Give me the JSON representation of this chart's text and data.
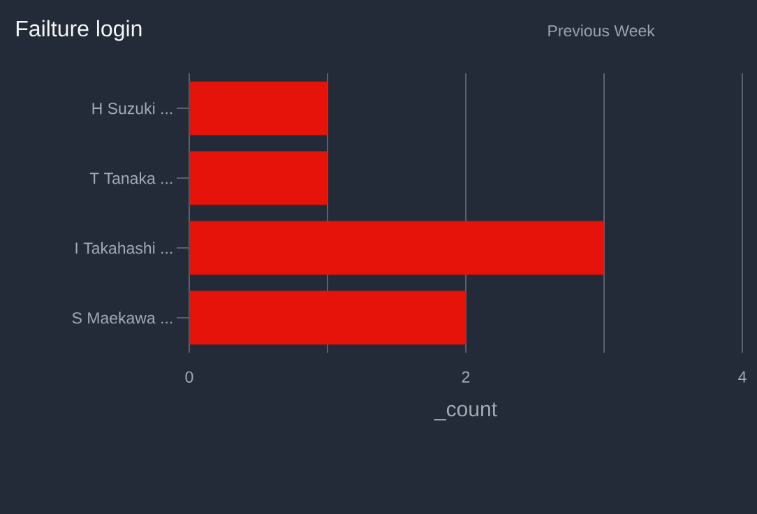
{
  "chart_data": {
    "type": "bar",
    "orientation": "horizontal",
    "title": "Failture login",
    "annotations": [
      "Previous Week"
    ],
    "xlabel": "_count",
    "categories": [
      "H Suzuki ...",
      "T Tanaka ...",
      "I Takahashi ...",
      "S Maekawa ..."
    ],
    "values": [
      1,
      1,
      3,
      2
    ],
    "color": "#e5130a",
    "xlim": [
      0,
      4
    ],
    "xticks": [
      0,
      {
        "value": 1,
        "label": null
      },
      2,
      {
        "value": 3,
        "label": null
      },
      4
    ],
    "grid": "x"
  }
}
